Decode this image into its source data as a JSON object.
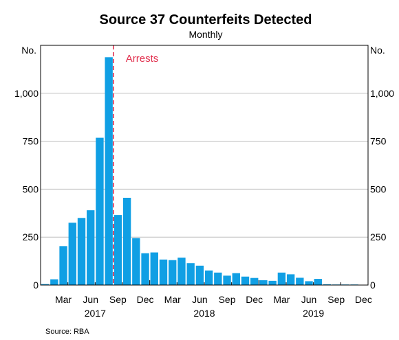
{
  "chart_data": {
    "type": "bar",
    "title": "Source 37 Counterfeits Detected",
    "subtitle": "Monthly",
    "source": "Source:   RBA",
    "units_left": "No.",
    "units_right": "No.",
    "yticks": [
      0,
      250,
      500,
      750,
      1000
    ],
    "ytick_labels": [
      "0",
      "250",
      "500",
      "750",
      "1,000"
    ],
    "ylim": [
      0,
      1250
    ],
    "grid": true,
    "legend": "none",
    "bar_color": "#109fe4",
    "annotation": {
      "label": "Arrests",
      "at_index": 8,
      "color": "#e2314f"
    },
    "month_tick_labels": [
      {
        "index": 2,
        "label": "Mar"
      },
      {
        "index": 5,
        "label": "Jun"
      },
      {
        "index": 8,
        "label": "Sep"
      },
      {
        "index": 11,
        "label": "Dec"
      },
      {
        "index": 14,
        "label": "Mar"
      },
      {
        "index": 17,
        "label": "Jun"
      },
      {
        "index": 20,
        "label": "Sep"
      },
      {
        "index": 23,
        "label": "Dec"
      },
      {
        "index": 26,
        "label": "Mar"
      },
      {
        "index": 29,
        "label": "Jun"
      },
      {
        "index": 32,
        "label": "Sep"
      },
      {
        "index": 35,
        "label": "Dec"
      }
    ],
    "year_labels": [
      {
        "start": 0,
        "end": 11,
        "label": "2017"
      },
      {
        "start": 12,
        "end": 23,
        "label": "2018"
      },
      {
        "start": 24,
        "end": 35,
        "label": "2019"
      }
    ],
    "categories": [
      "Jan 2017",
      "Feb 2017",
      "Mar 2017",
      "Apr 2017",
      "May 2017",
      "Jun 2017",
      "Jul 2017",
      "Aug 2017",
      "Sep 2017",
      "Oct 2017",
      "Nov 2017",
      "Dec 2017",
      "Jan 2018",
      "Feb 2018",
      "Mar 2018",
      "Apr 2018",
      "May 2018",
      "Jun 2018",
      "Jul 2018",
      "Aug 2018",
      "Sep 2018",
      "Oct 2018",
      "Nov 2018",
      "Dec 2018",
      "Jan 2019",
      "Feb 2019",
      "Mar 2019",
      "Apr 2019",
      "May 2019",
      "Jun 2019",
      "Jul 2019",
      "Aug 2019",
      "Sep 2019",
      "Oct 2019",
      "Nov 2019",
      "Dec 2019"
    ],
    "values": [
      5,
      30,
      203,
      325,
      350,
      390,
      768,
      1188,
      365,
      455,
      245,
      166,
      170,
      133,
      130,
      143,
      114,
      101,
      76,
      65,
      49,
      62,
      44,
      37,
      25,
      22,
      65,
      56,
      38,
      20,
      32,
      4,
      2,
      1,
      1,
      0
    ]
  }
}
